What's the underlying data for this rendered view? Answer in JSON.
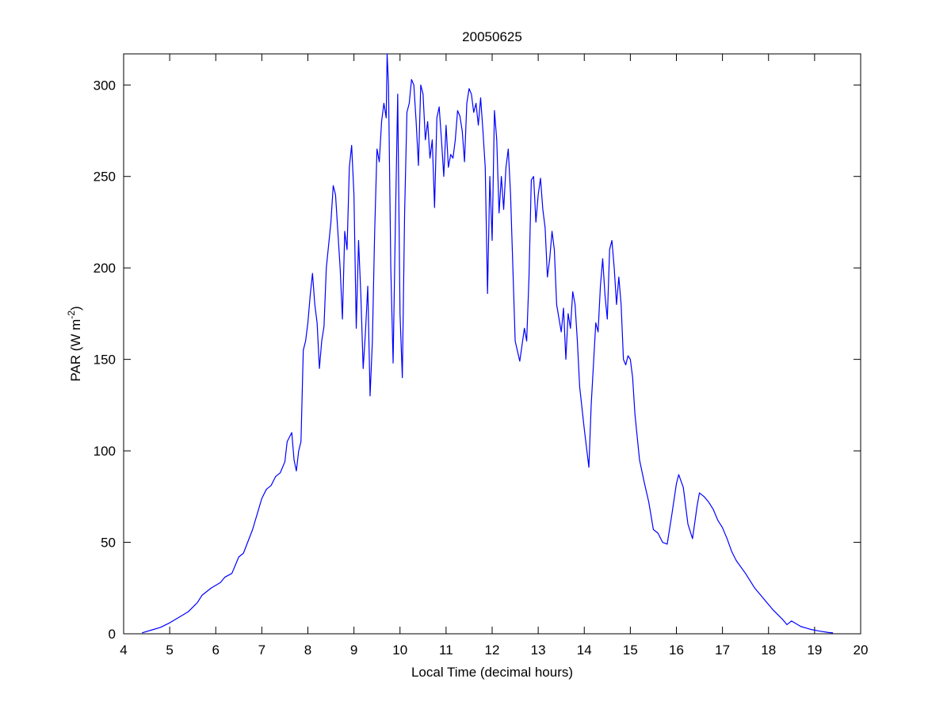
{
  "chart_data": {
    "type": "line",
    "title": "20050625",
    "xlabel": "Local Time (decimal hours)",
    "ylabel_parts": [
      "PAR (W m",
      "-2",
      ")"
    ],
    "xlim": [
      4,
      20
    ],
    "xticks": [
      4,
      5,
      6,
      7,
      8,
      9,
      10,
      11,
      12,
      13,
      14,
      15,
      16,
      17,
      18,
      19,
      20
    ],
    "ylim": [
      0,
      317
    ],
    "yticks": [
      0,
      50,
      100,
      150,
      200,
      250,
      300
    ],
    "grid": false,
    "series": [
      {
        "color": "#0000ff",
        "x": [
          4.4,
          4.6,
          4.8,
          5.0,
          5.2,
          5.4,
          5.6,
          5.7,
          5.9,
          6.1,
          6.2,
          6.35,
          6.5,
          6.6,
          6.8,
          7.0,
          7.1,
          7.2,
          7.3,
          7.4,
          7.5,
          7.55,
          7.65,
          7.7,
          7.75,
          7.8,
          7.85,
          7.9,
          7.95,
          8.0,
          8.05,
          8.1,
          8.15,
          8.2,
          8.25,
          8.3,
          8.35,
          8.4,
          8.5,
          8.55,
          8.6,
          8.7,
          8.75,
          8.8,
          8.85,
          8.9,
          8.95,
          9.0,
          9.05,
          9.1,
          9.15,
          9.2,
          9.25,
          9.3,
          9.35,
          9.4,
          9.45,
          9.5,
          9.55,
          9.6,
          9.65,
          9.7,
          9.72,
          9.75,
          9.8,
          9.85,
          9.9,
          9.95,
          10.0,
          10.05,
          10.1,
          10.15,
          10.2,
          10.25,
          10.3,
          10.35,
          10.4,
          10.45,
          10.5,
          10.55,
          10.6,
          10.65,
          10.7,
          10.75,
          10.8,
          10.85,
          10.9,
          10.95,
          11.0,
          11.05,
          11.1,
          11.15,
          11.2,
          11.25,
          11.3,
          11.35,
          11.4,
          11.45,
          11.5,
          11.55,
          11.6,
          11.65,
          11.7,
          11.75,
          11.8,
          11.85,
          11.9,
          11.95,
          12.0,
          12.05,
          12.1,
          12.15,
          12.2,
          12.25,
          12.3,
          12.35,
          12.4,
          12.45,
          12.5,
          12.6,
          12.7,
          12.75,
          12.8,
          12.85,
          12.9,
          12.95,
          13.0,
          13.05,
          13.1,
          13.15,
          13.2,
          13.25,
          13.3,
          13.35,
          13.4,
          13.5,
          13.55,
          13.6,
          13.65,
          13.7,
          13.75,
          13.8,
          13.85,
          13.9,
          14.0,
          14.1,
          14.15,
          14.25,
          14.3,
          14.35,
          14.4,
          14.45,
          14.5,
          14.55,
          14.6,
          14.65,
          14.7,
          14.75,
          14.8,
          14.85,
          14.9,
          14.95,
          15.0,
          15.05,
          15.1,
          15.2,
          15.3,
          15.4,
          15.5,
          15.6,
          15.7,
          15.8,
          15.9,
          16.0,
          16.05,
          16.15,
          16.25,
          16.35,
          16.45,
          16.5,
          16.6,
          16.7,
          16.8,
          16.9,
          17.0,
          17.1,
          17.2,
          17.3,
          17.5,
          17.7,
          17.9,
          18.1,
          18.3,
          18.4,
          18.5,
          18.7,
          18.9,
          19.1,
          19.3,
          19.4
        ],
        "values": [
          0.5,
          2,
          3.5,
          6,
          9,
          12,
          17,
          21,
          25,
          28,
          31,
          33,
          42,
          44,
          57,
          74,
          79,
          81,
          86,
          88,
          94,
          105,
          110,
          95,
          89,
          100,
          105,
          155,
          160,
          170,
          185,
          197,
          180,
          170,
          145,
          160,
          168,
          200,
          225,
          245,
          240,
          200,
          172,
          220,
          210,
          255,
          267,
          240,
          167,
          215,
          185,
          145,
          165,
          190,
          130,
          160,
          220,
          265,
          258,
          280,
          290,
          282,
          317,
          300,
          200,
          148,
          225,
          295,
          175,
          140,
          230,
          285,
          290,
          303,
          300,
          280,
          256,
          300,
          295,
          270,
          280,
          260,
          270,
          233,
          282,
          288,
          270,
          250,
          278,
          255,
          262,
          260,
          270,
          286,
          283,
          275,
          258,
          290,
          298,
          295,
          285,
          290,
          278,
          293,
          275,
          255,
          186,
          250,
          215,
          286,
          270,
          230,
          250,
          232,
          255,
          265,
          240,
          200,
          160,
          149,
          167,
          160,
          195,
          248,
          250,
          225,
          240,
          249,
          232,
          222,
          195,
          205,
          220,
          210,
          180,
          165,
          178,
          150,
          175,
          167,
          187,
          180,
          160,
          135,
          112,
          91,
          125,
          170,
          165,
          190,
          205,
          185,
          172,
          210,
          215,
          200,
          180,
          195,
          180,
          150,
          147,
          152,
          150,
          140,
          120,
          95,
          83,
          72,
          57,
          55,
          50,
          49,
          65,
          82,
          87,
          80,
          60,
          52,
          70,
          77,
          75,
          72,
          68,
          62,
          58,
          52,
          45,
          40,
          33,
          25,
          19,
          13,
          8,
          5,
          7,
          4,
          2.5,
          1.5,
          0.7,
          0.5
        ]
      }
    ]
  }
}
